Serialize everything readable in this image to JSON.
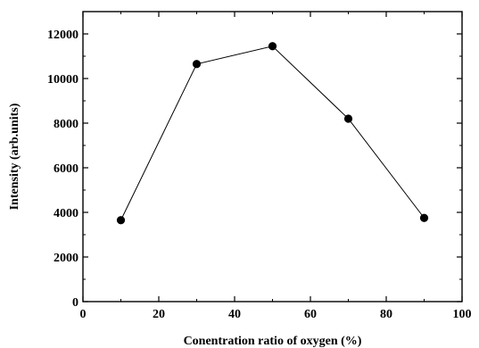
{
  "chart_data": {
    "type": "line",
    "title": "",
    "xlabel": "Conentration ratio of oxygen (%)",
    "ylabel": "Intensity (arb.units)",
    "xlim": [
      0,
      100
    ],
    "ylim": [
      0,
      13000
    ],
    "xticks": [
      0,
      20,
      40,
      60,
      80,
      100
    ],
    "yticks": [
      0,
      2000,
      4000,
      6000,
      8000,
      10000,
      12000
    ],
    "grid": false,
    "legend": "none",
    "series": [
      {
        "x": [
          10,
          30,
          50,
          70,
          90
        ],
        "y": [
          3650,
          10650,
          11450,
          8200,
          3750
        ],
        "marker": "filled-circle",
        "color": "#000000"
      }
    ]
  }
}
